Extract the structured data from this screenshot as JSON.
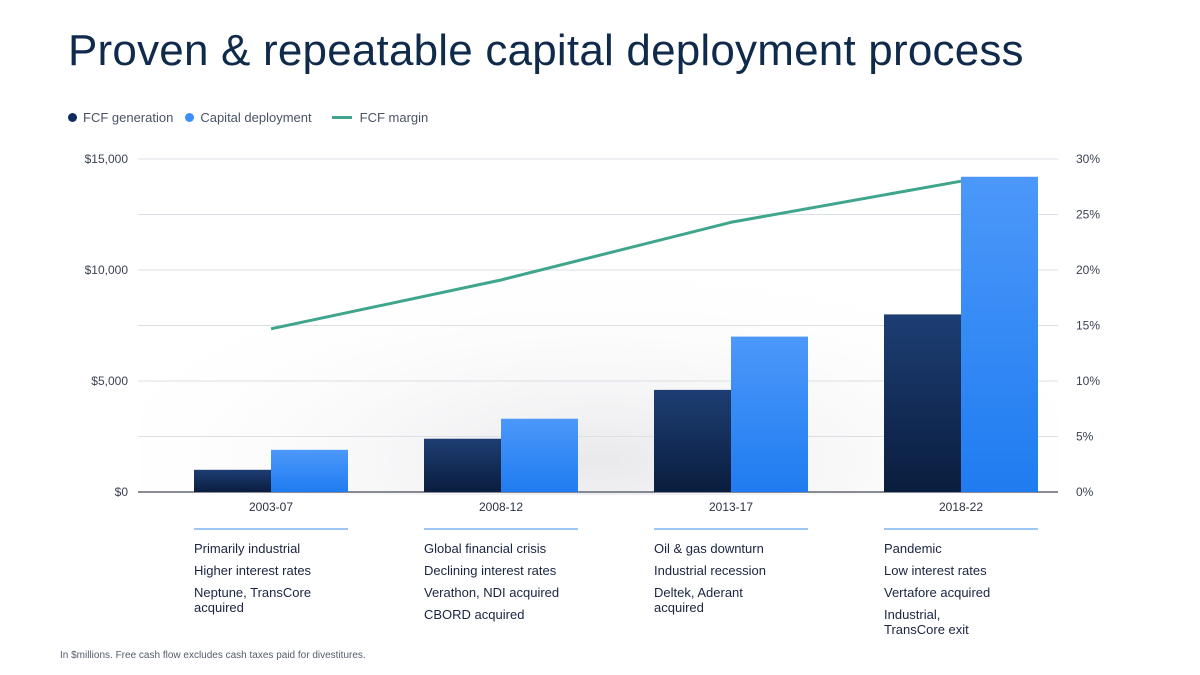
{
  "title": "Proven & repeatable capital deployment process",
  "legend": [
    {
      "label": "FCF generation",
      "color": "#0f2d5c",
      "kind": "dot"
    },
    {
      "label": "Capital deployment",
      "color": "#3d8ef7",
      "kind": "dot"
    },
    {
      "label": "FCF margin",
      "color": "#3fa58c",
      "kind": "line"
    }
  ],
  "chart_data": {
    "type": "bar",
    "categories": [
      "2003-07",
      "2008-12",
      "2013-17",
      "2018-22"
    ],
    "series": [
      {
        "name": "FCF generation",
        "type": "bar",
        "axis": "left",
        "color": "#0f2d5c",
        "values": [
          1000,
          2400,
          4600,
          8000
        ]
      },
      {
        "name": "Capital deployment",
        "type": "bar",
        "axis": "left",
        "color": "#3d8ef7",
        "values": [
          1900,
          3300,
          7000,
          14200
        ]
      },
      {
        "name": "FCF margin",
        "type": "line",
        "axis": "right",
        "color": "#3fa58c",
        "values": [
          14.7,
          19.1,
          24.3,
          28.0
        ]
      }
    ],
    "y_left": {
      "min": 0,
      "max": 15000,
      "ticks": [
        "$0",
        "$5,000",
        "$10,000",
        "$15,000"
      ]
    },
    "y_right": {
      "min": 0,
      "max": 30,
      "ticks": [
        "0%",
        "5%",
        "10%",
        "15%",
        "20%",
        "25%",
        "30%"
      ]
    },
    "grid": "horizontal",
    "legend_position": "top-left"
  },
  "notes": [
    [
      "Primarily industrial",
      "Higher interest rates",
      "Neptune, TransCore\nacquired"
    ],
    [
      "Global  financial crisis",
      "Declining interest rates",
      "Verathon, NDI acquired",
      "CBORD acquired"
    ],
    [
      "Oil & gas downturn",
      "Industrial recession",
      "Deltek, Aderant\nacquired"
    ],
    [
      "Pandemic",
      "Low interest rates",
      "Vertafore acquired",
      "Industrial,\nTransCore exit"
    ]
  ],
  "footnote": "In $millions. Free cash flow excludes cash taxes paid for divestitures."
}
